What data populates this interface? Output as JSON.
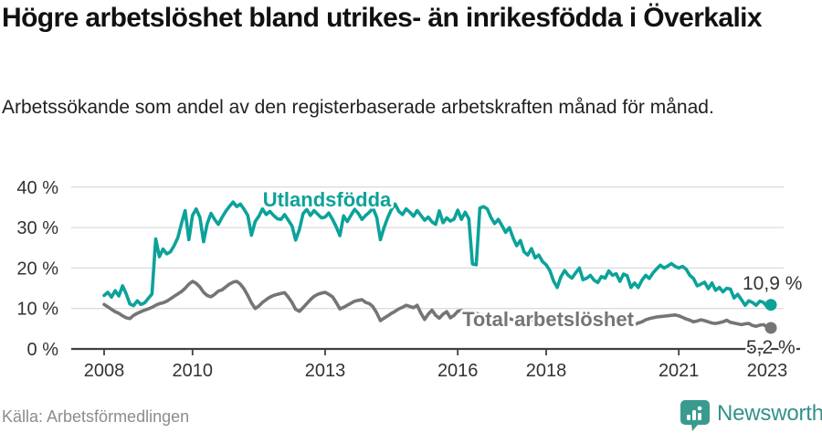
{
  "title": "Högre arbetslöshet bland utrikes- än inrikesfödda i Överkalix",
  "subtitle": "Arbetssökande som andel av den registerbaserade arbetskraften månad för månad.",
  "source": "Källa: Arbetsförmedlingen",
  "branding": {
    "name": "Newsworthy",
    "logo_icon": "bar-chart-speech-bubble",
    "color": "#33918a"
  },
  "colors": {
    "series_foreign": "#0ca29a",
    "series_total": "#757575",
    "grid": "#dcdcdc",
    "axis": "#404040",
    "tick_label": "#333333",
    "value_label": "#333333"
  },
  "chart_data": {
    "type": "line",
    "title": "Högre arbetslöshet bland utrikes- än inrikesfödda i Överkalix",
    "subtitle": "Arbetssökande som andel av den registerbaserade arbetskraften månad för månad.",
    "unit": "%",
    "frequency": "monthly",
    "x_start": "2008-01",
    "x_end": "2023-02",
    "ylim": [
      0,
      44
    ],
    "grid": "horizontal",
    "legend_position": "inline-labels",
    "yticks": [
      {
        "v": 0,
        "label": "0 %"
      },
      {
        "v": 10,
        "label": "10 %"
      },
      {
        "v": 20,
        "label": "20 %"
      },
      {
        "v": 30,
        "label": "30 %"
      },
      {
        "v": 40,
        "label": "40 %"
      }
    ],
    "xticks": [
      {
        "year": 2008,
        "label": "2008"
      },
      {
        "year": 2010,
        "label": "2010"
      },
      {
        "year": 2013,
        "label": "2013"
      },
      {
        "year": 2016,
        "label": "2016"
      },
      {
        "year": 2018,
        "label": "2018"
      },
      {
        "year": 2021,
        "label": "2021"
      },
      {
        "year": 2023,
        "label": "2023"
      }
    ],
    "series": [
      {
        "name": "Total arbetslöshet",
        "color": "#757575",
        "end_label": "5,2 %",
        "end_value": 5.2,
        "values": [
          11.0,
          10.4,
          9.8,
          9.2,
          8.8,
          8.2,
          7.7,
          7.5,
          8.3,
          8.8,
          9.2,
          9.6,
          9.9,
          10.3,
          10.8,
          11.2,
          11.4,
          11.8,
          12.4,
          13.0,
          13.6,
          14.2,
          15.0,
          16.0,
          16.7,
          16.2,
          15.3,
          14.0,
          13.2,
          12.9,
          13.5,
          14.3,
          14.6,
          15.3,
          16.0,
          16.5,
          16.7,
          16.0,
          14.8,
          13.2,
          11.4,
          10.0,
          10.6,
          11.5,
          12.2,
          12.8,
          13.2,
          13.5,
          13.7,
          13.9,
          12.8,
          11.5,
          9.8,
          9.3,
          10.2,
          11.2,
          12.2,
          13.0,
          13.5,
          13.8,
          14.0,
          13.5,
          12.9,
          11.5,
          9.9,
          10.3,
          10.8,
          11.3,
          11.8,
          12.0,
          12.2,
          11.5,
          11.2,
          10.4,
          8.9,
          7.0,
          7.6,
          8.2,
          8.8,
          9.3,
          9.9,
          10.3,
          10.8,
          10.5,
          10.2,
          10.8,
          8.8,
          7.3,
          8.6,
          9.6,
          8.3,
          7.6,
          8.6,
          9.2,
          7.7,
          8.3,
          9.3,
          9.5,
          9.0,
          8.4,
          8.1,
          8.8,
          8.5,
          8.3,
          8.0,
          7.8,
          7.6,
          7.9,
          8.0,
          7.8,
          7.5,
          7.2,
          7.0,
          7.3,
          7.0,
          6.8,
          7.1,
          6.9,
          6.7,
          6.9,
          7.0,
          6.8,
          6.5,
          6.3,
          6.5,
          6.8,
          6.6,
          6.4,
          6.6,
          6.8,
          6.5,
          6.3,
          6.4,
          6.2,
          6.0,
          6.2,
          6.4,
          6.6,
          6.4,
          6.2,
          6.0,
          6.2,
          6.1,
          6.0,
          6.0,
          6.4,
          6.7,
          7.2,
          7.5,
          7.7,
          7.9,
          8.0,
          8.1,
          8.2,
          8.3,
          8.4,
          8.2,
          7.8,
          7.4,
          7.1,
          6.7,
          6.9,
          7.2,
          7.0,
          6.7,
          6.4,
          6.3,
          6.5,
          6.7,
          7.1,
          6.6,
          6.4,
          6.2,
          6.0,
          6.2,
          6.3,
          5.8,
          5.6,
          5.9,
          6.0,
          5.4,
          5.2
        ]
      },
      {
        "name": "Utlandsfödda",
        "color": "#0ca29a",
        "end_label": "10,9 %",
        "end_value": 10.9,
        "values": [
          13.2,
          14.0,
          12.8,
          14.4,
          13.1,
          15.6,
          13.6,
          11.1,
          10.7,
          11.9,
          11.0,
          11.4,
          12.5,
          13.6,
          27.2,
          22.8,
          24.7,
          23.5,
          24.0,
          25.5,
          27.5,
          31.0,
          34.2,
          27.0,
          33.0,
          34.6,
          32.5,
          26.5,
          31.0,
          33.5,
          32.0,
          30.8,
          32.5,
          34.0,
          35.2,
          36.3,
          35.2,
          35.8,
          34.5,
          33.0,
          28.1,
          31.5,
          32.8,
          34.6,
          33.2,
          34.0,
          33.0,
          32.2,
          32.0,
          33.2,
          31.8,
          30.4,
          26.9,
          29.5,
          33.4,
          34.5,
          33.0,
          34.2,
          33.3,
          32.4,
          32.6,
          33.6,
          32.0,
          30.2,
          28.0,
          32.9,
          31.5,
          33.0,
          34.5,
          33.5,
          32.0,
          33.0,
          33.8,
          34.8,
          32.5,
          27.0,
          30.0,
          32.5,
          34.5,
          35.8,
          34.0,
          33.2,
          34.6,
          33.8,
          32.8,
          34.2,
          33.0,
          31.8,
          32.6,
          31.4,
          30.8,
          34.1,
          31.2,
          32.4,
          31.6,
          32.1,
          34.3,
          32.0,
          33.8,
          32.2,
          21.0,
          20.8,
          34.8,
          35.2,
          34.6,
          32.5,
          31.0,
          32.0,
          30.5,
          28.8,
          30.0,
          27.5,
          25.5,
          26.8,
          24.0,
          23.2,
          24.8,
          22.5,
          23.2,
          21.6,
          20.8,
          19.4,
          16.8,
          15.2,
          17.8,
          19.4,
          18.2,
          17.5,
          18.8,
          20.0,
          17.1,
          17.5,
          18.2,
          17.0,
          16.4,
          17.9,
          17.5,
          19.3,
          18.2,
          18.6,
          16.7,
          18.5,
          18.1,
          15.2,
          16.3,
          15.2,
          17.0,
          18.2,
          17.4,
          18.8,
          19.8,
          20.7,
          20.0,
          20.5,
          21.1,
          20.4,
          20.0,
          20.4,
          19.7,
          18.2,
          17.4,
          15.6,
          16.0,
          16.5,
          14.9,
          16.3,
          14.5,
          15.2,
          14.1,
          15.0,
          14.8,
          12.6,
          13.5,
          12.2,
          10.8,
          11.9,
          11.5,
          10.8,
          11.8,
          11.5,
          10.4,
          10.9
        ]
      }
    ]
  }
}
